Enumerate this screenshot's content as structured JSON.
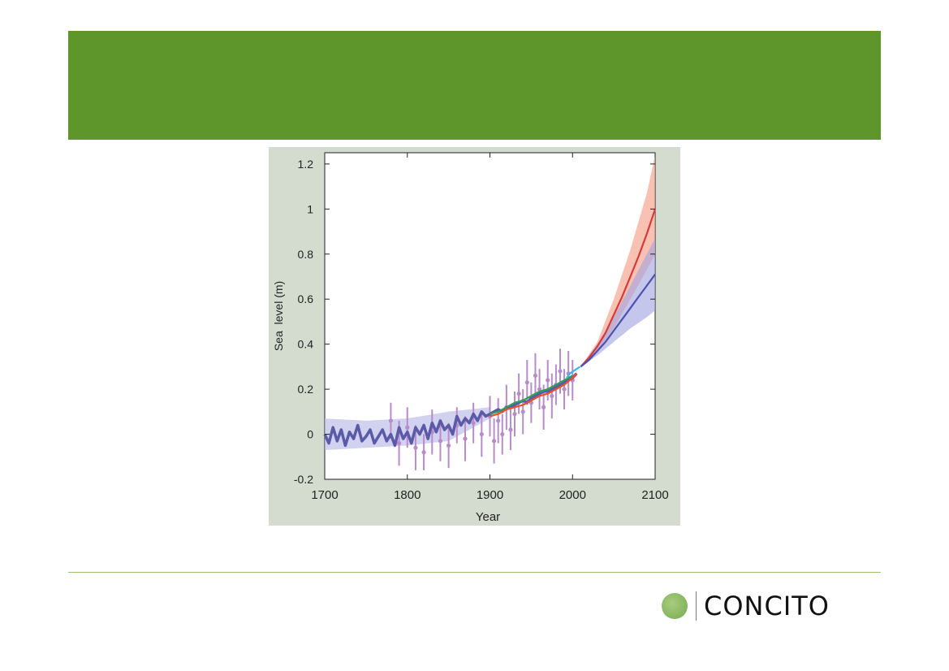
{
  "brand": {
    "name": "CONCITO",
    "color": "#5e962b"
  },
  "chart_data": {
    "type": "line",
    "title": "",
    "xlabel": "Year",
    "ylabel": "Sea  level (m)",
    "xlim": [
      1700,
      2100
    ],
    "ylim": [
      -0.2,
      1.25
    ],
    "xticks": [
      1700,
      1800,
      1900,
      2000,
      2100
    ],
    "yticks": [
      -0.2,
      0,
      0.2,
      0.4,
      0.6,
      0.8,
      1,
      1.2
    ],
    "ytick_labels": [
      "-0.2",
      "0",
      "0.2",
      "0.4",
      "0.6",
      "0.8",
      "1",
      "1.2"
    ],
    "grid": false,
    "series": [
      {
        "color": "#5a5aa8",
        "x": [
          1700,
          1705,
          1710,
          1715,
          1720,
          1725,
          1730,
          1735,
          1740,
          1745,
          1750,
          1755,
          1760,
          1765,
          1770,
          1775,
          1780,
          1785,
          1790,
          1795,
          1800,
          1805,
          1810,
          1815,
          1820,
          1825,
          1830,
          1835,
          1840,
          1845,
          1850,
          1855,
          1860,
          1865,
          1870,
          1875,
          1880,
          1885,
          1890,
          1895,
          1900,
          1905,
          1910,
          1915,
          1920,
          1925,
          1930,
          1935,
          1940,
          1945,
          1950,
          1955,
          1960,
          1965,
          1970,
          1975,
          1980,
          1985,
          1990,
          1995,
          2000,
          2005
        ],
        "y": [
          0.0,
          -0.04,
          0.03,
          -0.03,
          0.02,
          -0.05,
          0.01,
          -0.02,
          0.04,
          -0.03,
          -0.01,
          0.02,
          -0.04,
          -0.01,
          0.02,
          -0.03,
          0.0,
          -0.05,
          0.03,
          -0.02,
          0.01,
          -0.04,
          0.03,
          0.0,
          0.04,
          -0.02,
          0.05,
          0.01,
          0.06,
          0.02,
          0.04,
          0.0,
          0.08,
          0.04,
          0.07,
          0.05,
          0.09,
          0.06,
          0.1,
          0.08,
          0.09,
          0.1,
          0.11,
          0.1,
          0.12,
          0.12,
          0.13,
          0.14,
          0.15,
          0.14,
          0.16,
          0.17,
          0.18,
          0.19,
          0.19,
          0.2,
          0.21,
          0.22,
          0.23,
          0.24,
          0.25,
          0.27
        ]
      },
      {
        "color": "#2ca05a",
        "x": [
          1900,
          1910,
          1920,
          1930,
          1940,
          1950,
          1960,
          1970,
          1980,
          1990,
          2000
        ],
        "y": [
          0.09,
          0.1,
          0.12,
          0.14,
          0.15,
          0.17,
          0.19,
          0.2,
          0.22,
          0.24,
          0.26
        ]
      },
      {
        "color": "#e8512a",
        "x": [
          1900,
          1910,
          1920,
          1930,
          1940,
          1950,
          1960,
          1970,
          1980,
          1990,
          2000,
          2005
        ],
        "y": [
          0.08,
          0.09,
          0.11,
          0.12,
          0.13,
          0.15,
          0.17,
          0.18,
          0.2,
          0.22,
          0.25,
          0.27
        ]
      },
      {
        "color": "#3ab8e0",
        "x": [
          1993,
          1997,
          2001,
          2005,
          2009
        ],
        "y": [
          0.25,
          0.27,
          0.28,
          0.29,
          0.3
        ]
      },
      {
        "color": "#d63a3a",
        "x": [
          2010,
          2020,
          2030,
          2040,
          2050,
          2060,
          2070,
          2080,
          2090,
          2100
        ],
        "y": [
          0.3,
          0.34,
          0.39,
          0.45,
          0.53,
          0.61,
          0.7,
          0.79,
          0.89,
          1.0
        ]
      },
      {
        "color": "#4a52b0",
        "x": [
          2010,
          2020,
          2030,
          2040,
          2050,
          2060,
          2070,
          2080,
          2090,
          2100
        ],
        "y": [
          0.3,
          0.33,
          0.37,
          0.41,
          0.46,
          0.51,
          0.56,
          0.61,
          0.66,
          0.71
        ]
      }
    ],
    "bands": [
      {
        "color": "#f4a088",
        "x": [
          2010,
          2030,
          2050,
          2070,
          2090,
          2100
        ],
        "low": [
          0.3,
          0.37,
          0.47,
          0.6,
          0.73,
          0.8
        ],
        "high": [
          0.3,
          0.41,
          0.6,
          0.82,
          1.07,
          1.24
        ]
      },
      {
        "color": "#a6a8e0",
        "x": [
          2010,
          2030,
          2050,
          2070,
          2090,
          2100
        ],
        "low": [
          0.3,
          0.35,
          0.41,
          0.47,
          0.52,
          0.55
        ],
        "high": [
          0.3,
          0.4,
          0.52,
          0.66,
          0.8,
          0.87
        ]
      },
      {
        "color": "#b8b8e8",
        "x": [
          1700,
          1750,
          1800,
          1850,
          1900
        ],
        "low": [
          -0.07,
          -0.06,
          -0.05,
          -0.03,
          0.07
        ],
        "high": [
          0.07,
          0.06,
          0.07,
          0.1,
          0.12
        ]
      }
    ],
    "points": {
      "color": "#b88cc8",
      "x": [
        1780,
        1790,
        1800,
        1810,
        1820,
        1830,
        1840,
        1850,
        1860,
        1870,
        1880,
        1890,
        1900,
        1905,
        1910,
        1915,
        1920,
        1925,
        1930,
        1935,
        1940,
        1945,
        1950,
        1955,
        1960,
        1965,
        1970,
        1975,
        1980,
        1985,
        1990,
        1995,
        2000
      ],
      "y": [
        0.06,
        -0.04,
        0.03,
        -0.06,
        -0.08,
        0.01,
        -0.03,
        -0.05,
        0.04,
        -0.02,
        0.05,
        0.0,
        0.08,
        -0.03,
        0.06,
        0.0,
        0.12,
        0.02,
        0.09,
        0.18,
        0.1,
        0.23,
        0.14,
        0.26,
        0.2,
        0.12,
        0.24,
        0.17,
        0.22,
        0.28,
        0.2,
        0.27,
        0.24
      ],
      "err": [
        0.08,
        0.1,
        0.09,
        0.1,
        0.08,
        0.1,
        0.09,
        0.1,
        0.08,
        0.1,
        0.09,
        0.1,
        0.09,
        0.1,
        0.1,
        0.09,
        0.1,
        0.09,
        0.1,
        0.09,
        0.1,
        0.1,
        0.09,
        0.1,
        0.09,
        0.1,
        0.09,
        0.1,
        0.09,
        0.1,
        0.09,
        0.1,
        0.09
      ]
    }
  }
}
